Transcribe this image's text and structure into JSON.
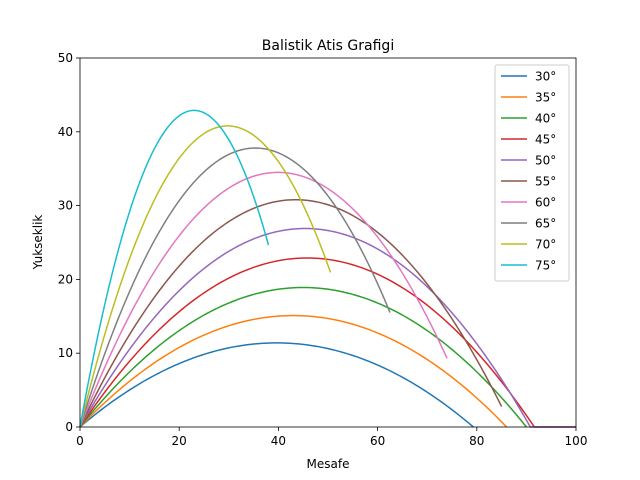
{
  "chart_data": {
    "type": "line",
    "title": "Balistik Atis Grafigi",
    "xlabel": "Mesafe",
    "ylabel": "Yukseklik",
    "xlim": [
      0,
      100
    ],
    "ylim": [
      0,
      50
    ],
    "xticks": [
      0,
      20,
      40,
      60,
      80,
      100
    ],
    "yticks": [
      0,
      10,
      20,
      30,
      40,
      50
    ],
    "grid": false,
    "legend_position": "top-right",
    "series": [
      {
        "name": "30°",
        "color": "#1f77b4",
        "angle_deg": 30,
        "range": 79.3,
        "peak": 11.4,
        "x_end": 79.3,
        "y_end": 0
      },
      {
        "name": "35°",
        "color": "#ff7f0e",
        "angle_deg": 35,
        "range": 86.0,
        "peak": 15.1,
        "x_end": 86.0,
        "y_end": 0
      },
      {
        "name": "40°",
        "color": "#2ca02c",
        "angle_deg": 40,
        "range": 90.0,
        "peak": 18.9,
        "x_end": 90.0,
        "y_end": 0
      },
      {
        "name": "45°",
        "color": "#d62728",
        "angle_deg": 45,
        "range": 91.6,
        "peak": 22.9,
        "x_end": 92.0,
        "y_end": 0,
        "tail_to": 100
      },
      {
        "name": "50°",
        "color": "#9467bd",
        "angle_deg": 50,
        "range": 90.8,
        "peak": 26.9,
        "x_end": 91.0,
        "y_end": 0,
        "tail_to": 100
      },
      {
        "name": "55°",
        "color": "#8c564b",
        "angle_deg": 55,
        "range": 87.0,
        "peak": 30.8,
        "x_end": 85.0,
        "y_end": 1.5
      },
      {
        "name": "60°",
        "color": "#e377c2",
        "angle_deg": 60,
        "range": 79.8,
        "peak": 34.5,
        "x_end": 74.0,
        "y_end": 8.5
      },
      {
        "name": "65°",
        "color": "#7f7f7f",
        "angle_deg": 65,
        "range": 70.7,
        "peak": 37.8,
        "x_end": 62.5,
        "y_end": 14.5
      },
      {
        "name": "70°",
        "color": "#bcbd22",
        "angle_deg": 70,
        "range": 59.5,
        "peak": 40.8,
        "x_end": 50.5,
        "y_end": 19.5
      },
      {
        "name": "75°",
        "color": "#17becf",
        "angle_deg": 75,
        "range": 46.0,
        "peak": 42.9,
        "x_end": 38.0,
        "y_end": 23.3
      }
    ]
  }
}
